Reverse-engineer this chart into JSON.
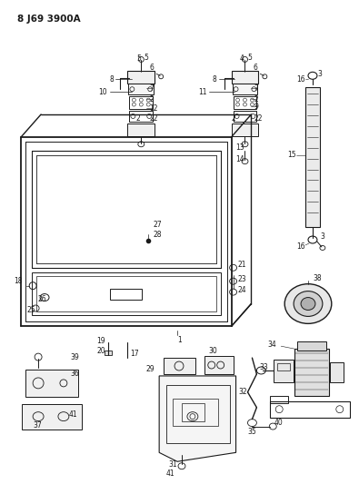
{
  "title": "8 J69 3900A",
  "bg_color": "#ffffff",
  "line_color": "#1a1a1a",
  "fig_width": 3.95,
  "fig_height": 5.33,
  "dpi": 100
}
